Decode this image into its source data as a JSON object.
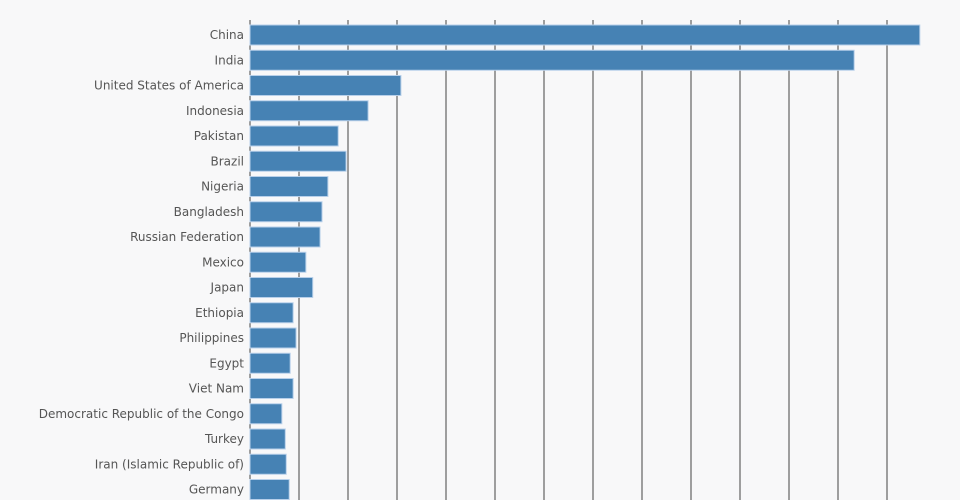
{
  "chart_data": {
    "type": "bar",
    "orientation": "horizontal",
    "title": "",
    "xlabel": "",
    "ylabel": "",
    "categories": [
      "China",
      "India",
      "United States of America",
      "Indonesia",
      "Pakistan",
      "Brazil",
      "Nigeria",
      "Bangladesh",
      "Russian Federation",
      "Mexico",
      "Japan",
      "Ethiopia",
      "Philippines",
      "Egypt",
      "Viet Nam",
      "Democratic Republic of the Congo",
      "Turkey",
      "Iran (Islamic Republic of)",
      "Germany"
    ],
    "values": [
      1367,
      1233,
      308,
      241,
      180,
      196,
      159,
      147,
      143,
      114,
      128,
      88,
      94,
      82,
      88,
      65,
      72,
      74,
      80
    ],
    "xlim": [
      0,
      1400
    ],
    "grid_step": 100,
    "grid": true,
    "color": "#4682b4"
  }
}
